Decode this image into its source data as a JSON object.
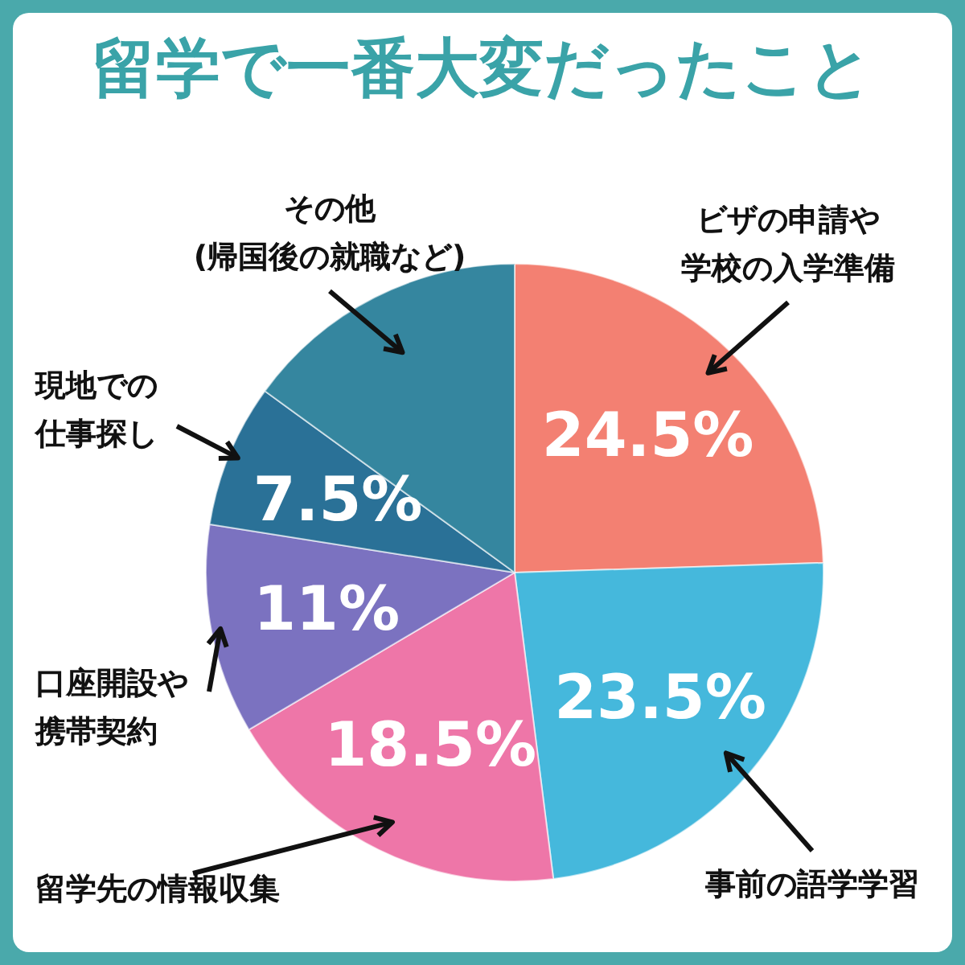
{
  "chart_data": {
    "type": "pie",
    "title": "留学で一番大変だったこと",
    "categories": [
      "ビザの申請や学校の入学準備",
      "事前の語学学習",
      "留学先の情報収集",
      "口座開設や携帯契約",
      "現地での仕事探し",
      "その他 (帰国後の就職など)"
    ],
    "values": [
      24.5,
      23.5,
      18.5,
      11,
      7.5,
      15
    ],
    "colors": [
      "#f38072",
      "#45b8dc",
      "#ee76a8",
      "#7b72c0",
      "#2a7197",
      "#35869f"
    ],
    "value_labels": [
      "24.5%",
      "23.5%",
      "18.5%",
      "11%",
      "7.5%",
      null
    ],
    "legend": false
  }
}
